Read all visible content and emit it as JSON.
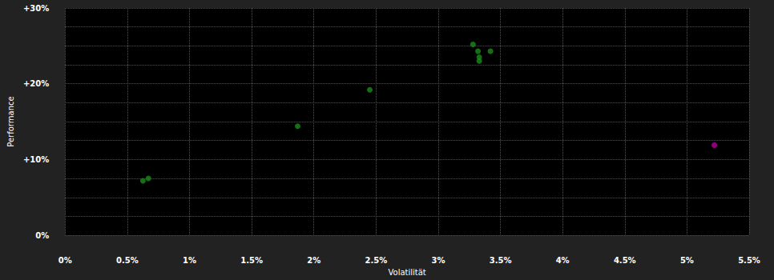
{
  "chart_data": {
    "type": "scatter",
    "x_label": "Volatilität",
    "y_label": "Performance",
    "x": [
      0.626,
      0.67,
      1.87,
      2.45,
      3.28,
      3.32,
      3.42,
      3.33,
      3.33,
      5.22
    ],
    "values": [
      7.2,
      7.5,
      14.4,
      19.2,
      25.2,
      24.3,
      24.3,
      23.5,
      23.0,
      11.9
    ],
    "colors": [
      "#1a8c1a",
      "#1a8c1a",
      "#1a8c1a",
      "#1a8c1a",
      "#1a8c1a",
      "#1a8c1a",
      "#1a8c1a",
      "#1a8c1a",
      "#1a8c1a",
      "#b0009a"
    ],
    "marker": "circle",
    "xlim": [
      0,
      5.5
    ],
    "xticks": [
      {
        "value": 0,
        "label": "0%"
      },
      {
        "value": 0.5,
        "label": "0.5%"
      },
      {
        "value": 1,
        "label": "1%"
      },
      {
        "value": 1.5,
        "label": "1.5%"
      },
      {
        "value": 2,
        "label": "2%"
      },
      {
        "value": 2.5,
        "label": "2.5%"
      },
      {
        "value": 3,
        "label": "3%"
      },
      {
        "value": 3.5,
        "label": "3.5%"
      },
      {
        "value": 4,
        "label": "4%"
      },
      {
        "value": 4.5,
        "label": "4.5%"
      },
      {
        "value": 5,
        "label": "5%"
      },
      {
        "value": 5.5,
        "label": "5.5%"
      }
    ],
    "ylim": [
      0,
      30
    ],
    "yticks": [
      {
        "value": 0,
        "label": "0%"
      },
      {
        "value": 10,
        "label": "+10%"
      },
      {
        "value": 20,
        "label": "+20%"
      },
      {
        "value": 30,
        "label": "+30%"
      }
    ],
    "grid": true
  }
}
